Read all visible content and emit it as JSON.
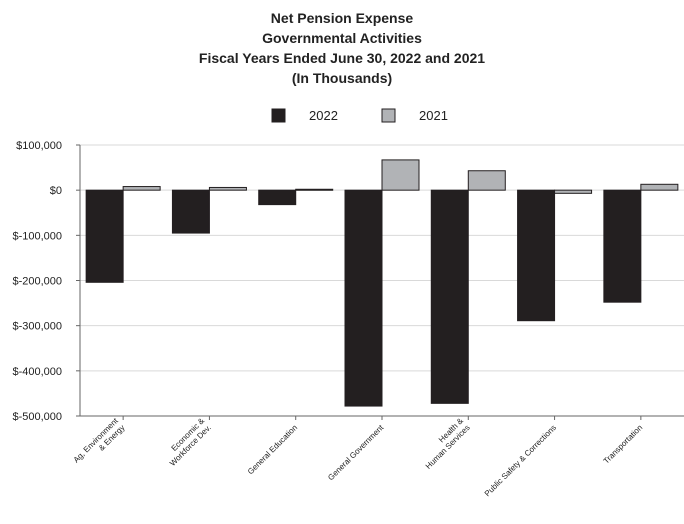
{
  "chart_data": {
    "type": "bar",
    "title": [
      "Net Pension Expense",
      "Governmental Activities",
      "Fiscal Years Ended June 30, 2022 and 2021",
      "(In Thousands)"
    ],
    "xlabel": "",
    "ylabel": "",
    "ylim": [
      -500000,
      100000
    ],
    "yticks": [
      100000,
      0,
      -100000,
      -200000,
      -300000,
      -400000,
      -500000
    ],
    "ytick_labels": [
      "$100,000",
      "$0",
      "$-100,000",
      "$-200,000",
      "$-300,000",
      "$-400,000",
      "$-500,000"
    ],
    "grid": true,
    "legend_position": "top-center",
    "categories": [
      [
        "Ag, Environment",
        "& Energy"
      ],
      [
        "Economic &",
        "Workforce Dev."
      ],
      [
        "General Education"
      ],
      [
        "General Government"
      ],
      [
        "Health &",
        "Human Services"
      ],
      [
        "Public Safety & Corrections"
      ],
      [
        "Transportation"
      ]
    ],
    "series": [
      {
        "name": "2022",
        "color": "#231f20",
        "values": [
          -204000,
          -95000,
          -32000,
          -478000,
          -472000,
          -289000,
          -248000
        ]
      },
      {
        "name": "2021",
        "color": "#b1b3b6",
        "values": [
          8000,
          6000,
          2000,
          67000,
          43000,
          -7000,
          13000
        ]
      }
    ]
  }
}
